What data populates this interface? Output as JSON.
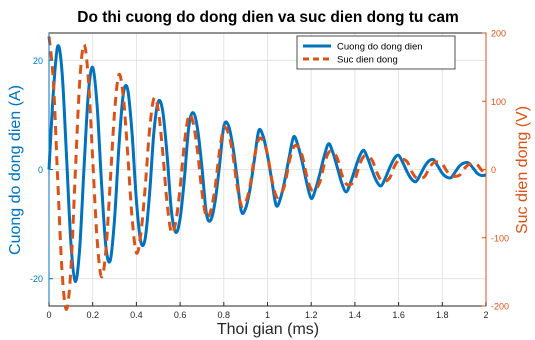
{
  "chart_data": {
    "type": "line",
    "title": "Do thi cuong do dong dien va suc dien dong tu cam",
    "xlabel": "Thoi gian (ms)",
    "ylabel_left": "Cuong do dong dien (A)",
    "ylabel_right": "Suc dien dong (V)",
    "xlim": [
      0,
      2
    ],
    "ylim_left": [
      -25,
      25
    ],
    "ylim_right": [
      -200,
      200
    ],
    "x_ticks": [
      0,
      0.2,
      0.4,
      0.6,
      0.8,
      1,
      1.2,
      1.4,
      1.6,
      1.8,
      2
    ],
    "x_tick_labels": [
      "0",
      "0.2",
      "0.4",
      "0.6",
      "0.8",
      "1",
      "1.2",
      "1.4",
      "1.6",
      "1.8",
      "2"
    ],
    "y_ticks_left": [
      -20,
      0,
      20
    ],
    "y_tick_labels_left": [
      "-20",
      "0",
      "20"
    ],
    "y_ticks_right": [
      -200,
      -100,
      0,
      100,
      200
    ],
    "y_tick_labels_right": [
      "-200",
      "-100",
      "0",
      "100",
      "200"
    ],
    "grid": true,
    "legend_position": "top-right",
    "series": [
      {
        "name": "Cuong do dong dien",
        "axis": "left",
        "color": "#0072BD",
        "dash": "solid",
        "x": [
          0,
          0.02,
          0.04,
          0.06,
          0.08,
          0.1,
          0.12,
          0.14,
          0.16,
          0.18,
          0.2,
          0.22,
          0.24,
          0.26,
          0.28,
          0.3,
          0.32,
          0.34,
          0.36,
          0.38,
          0.4,
          0.42,
          0.44,
          0.46,
          0.48,
          0.5,
          0.52,
          0.54,
          0.56,
          0.58,
          0.6,
          0.62,
          0.64,
          0.66,
          0.68,
          0.7,
          0.72,
          0.74,
          0.76,
          0.78,
          0.8,
          0.82,
          0.84,
          0.86,
          0.88,
          0.9,
          0.92,
          0.94,
          0.96,
          0.98,
          1,
          1.02,
          1.04,
          1.06,
          1.08,
          1.1,
          1.12,
          1.14,
          1.16,
          1.18,
          1.2,
          1.22,
          1.24,
          1.26,
          1.28,
          1.3,
          1.32,
          1.34,
          1.36,
          1.38,
          1.4,
          1.42,
          1.44,
          1.46,
          1.48,
          1.5,
          1.52,
          1.54,
          1.56,
          1.58,
          1.6,
          1.62,
          1.64,
          1.66,
          1.68,
          1.7,
          1.72,
          1.74,
          1.76,
          1.78,
          1.8,
          1.82,
          1.84,
          1.86,
          1.88,
          1.9,
          1.92,
          1.94,
          1.96,
          1.98,
          2
        ],
        "y": [
          0,
          14.2,
          22.6,
          17.7,
          2.6,
          -13.3,
          -20.5,
          -14.7,
          0.1,
          13.9,
          18.7,
          11.8,
          -2.2,
          -14.0,
          -16.7,
          -9.1,
          4.2,
          13.8,
          14.7,
          6.7,
          -5.7,
          -13.2,
          -12.7,
          -4.6,
          6.8,
          12.4,
          10.8,
          2.9,
          -7.5,
          -11.5,
          -9.0,
          -1.5,
          7.9,
          10.4,
          7.4,
          0.4,
          -8.0,
          -9.3,
          -5.9,
          0.6,
          7.9,
          8.2,
          4.6,
          -1.3,
          -7.6,
          -7.1,
          -3.6,
          1.8,
          7.1,
          6.1,
          2.6,
          -2.1,
          -6.6,
          -5.2,
          -1.8,
          2.4,
          6.0,
          4.3,
          1.2,
          -2.5,
          -5.3,
          -3.6,
          -0.7,
          2.5,
          4.7,
          3.0,
          0.3,
          -2.5,
          -4.1,
          -2.4,
          0.0,
          2.3,
          3.5,
          1.9,
          -0.3,
          -2.2,
          -3.0,
          -1.5,
          0.4,
          2.0,
          2.6,
          1.2,
          -0.5,
          -1.8,
          -2.2,
          -0.9,
          0.6,
          1.6,
          1.8,
          0.6,
          -0.7,
          -1.4,
          -1.5,
          -0.4,
          0.7,
          1.2,
          1.2,
          0.3,
          -0.7,
          -1.1,
          -1.0
        ]
      },
      {
        "name": "Suc dien dong",
        "axis": "right",
        "color": "#D95319",
        "dash": "dashed",
        "x": [
          0,
          0.02,
          0.04,
          0.06,
          0.08,
          0.1,
          0.12,
          0.14,
          0.16,
          0.18,
          0.2,
          0.22,
          0.24,
          0.26,
          0.28,
          0.3,
          0.32,
          0.34,
          0.36,
          0.38,
          0.4,
          0.42,
          0.44,
          0.46,
          0.48,
          0.5,
          0.52,
          0.54,
          0.56,
          0.58,
          0.6,
          0.62,
          0.64,
          0.66,
          0.68,
          0.7,
          0.72,
          0.74,
          0.76,
          0.78,
          0.8,
          0.82,
          0.84,
          0.86,
          0.88,
          0.9,
          0.92,
          0.94,
          0.96,
          0.98,
          1,
          1.02,
          1.04,
          1.06,
          1.08,
          1.1,
          1.12,
          1.14,
          1.16,
          1.18,
          1.2,
          1.22,
          1.24,
          1.26,
          1.28,
          1.3,
          1.32,
          1.34,
          1.36,
          1.38,
          1.4,
          1.42,
          1.44,
          1.46,
          1.48,
          1.5,
          1.52,
          1.54,
          1.56,
          1.58,
          1.6,
          1.62,
          1.64,
          1.66,
          1.68,
          1.7,
          1.72,
          1.74,
          1.76,
          1.78,
          1.8,
          1.82,
          1.84,
          1.86,
          1.88,
          1.9,
          1.92,
          1.94,
          1.96,
          1.98,
          2
        ],
        "y": [
          195,
          129,
          -16,
          -151,
          -205,
          -147,
          -8,
          126,
          183,
          133,
          15,
          -102,
          -157,
          -120,
          -20,
          84,
          139,
          107,
          24,
          -70,
          -122,
          -95,
          -27,
          57,
          104,
          87,
          27,
          -48,
          -92,
          -77,
          -27,
          39,
          79,
          68,
          26,
          -33,
          -69,
          -61,
          -27,
          26,
          60,
          54,
          25,
          -22,
          -52,
          -48,
          -24,
          18,
          44,
          42,
          22,
          -15,
          -39,
          -37,
          -21,
          12,
          33,
          33,
          19,
          -10,
          -29,
          -29,
          -18,
          8,
          25,
          25,
          16,
          -7,
          -21,
          -22,
          -15,
          6,
          19,
          19,
          13,
          -4,
          -16,
          -17,
          -12,
          4,
          14,
          15,
          11,
          -3,
          -12,
          -13,
          -10,
          2,
          10,
          11,
          8,
          -2,
          -9,
          -10,
          -8,
          1,
          7,
          8,
          7,
          -1,
          -6
        ]
      }
    ]
  }
}
